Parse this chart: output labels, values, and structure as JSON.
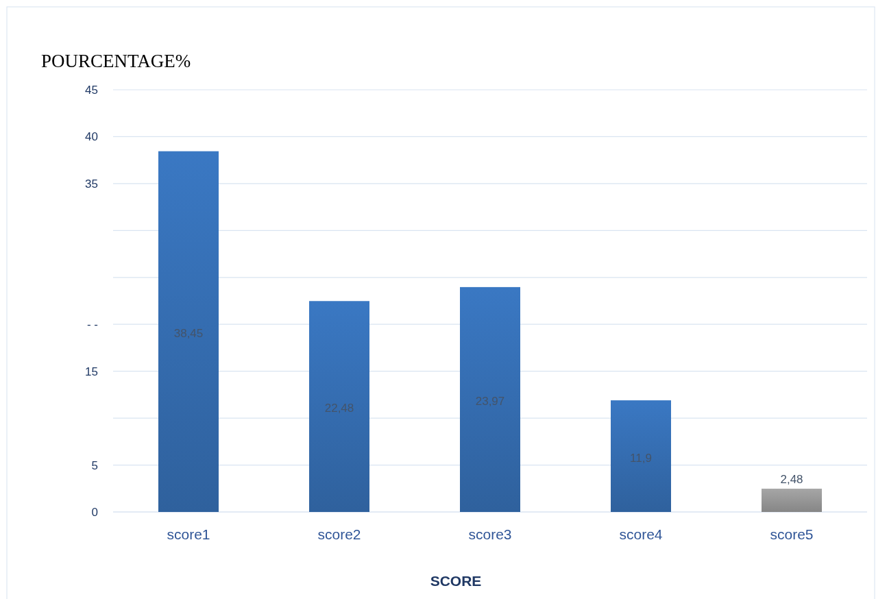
{
  "chart_data": {
    "type": "bar",
    "title": "POURCENTAGE%",
    "xlabel": "SCORE",
    "categories": [
      "score1",
      "score2",
      "score3",
      "score4",
      "score5"
    ],
    "values": [
      38.45,
      22.48,
      23.97,
      11.9,
      2.48
    ],
    "value_labels": [
      "38,45",
      "22,48",
      "23,97",
      "11,9",
      "2,48"
    ],
    "colors": [
      "#3a78c3",
      "#3a78c3",
      "#3a78c3",
      "#3a78c3",
      "#a6a6a6"
    ],
    "ylim": [
      0,
      45
    ],
    "yticks": [
      0,
      5,
      {
        "value": 10,
        "label": null
      },
      15,
      {
        "value": 20,
        "label": "- -"
      },
      {
        "value": 25,
        "label": null
      },
      {
        "value": 30,
        "label": null
      },
      35,
      40,
      45
    ],
    "grid": "y"
  }
}
